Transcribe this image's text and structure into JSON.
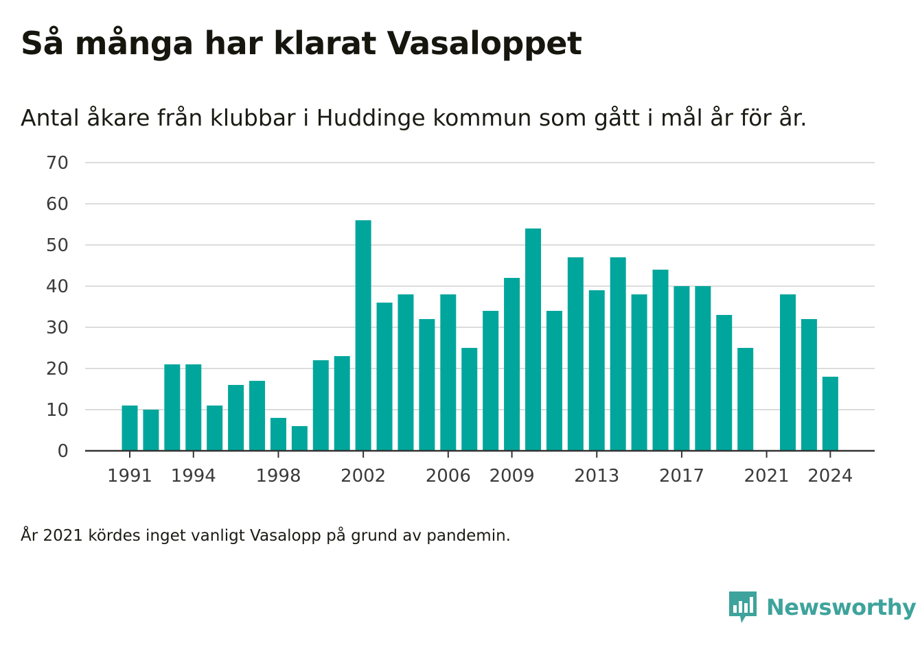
{
  "colors": {
    "bar": "#00a69c",
    "grid": "#dcdcdc",
    "axis": "#333333",
    "brand": "#3ea39c"
  },
  "brand": {
    "name": "Newsworthy",
    "icon": "newsworthy-logo-icon"
  },
  "footnote": "År 2021 kördes inget vanligt Vasalopp på grund av pandemin.",
  "chart_data": {
    "type": "bar",
    "title": "Så många har klarat Vasaloppet",
    "subtitle": "Antal åkare från klubbar i Huddinge kommun som gått i mål år för år.",
    "xlabel": "",
    "ylabel": "",
    "ylim": [
      0,
      70
    ],
    "yticks": [
      0,
      10,
      20,
      30,
      40,
      50,
      60,
      70
    ],
    "xticks": [
      "1991",
      "1994",
      "1998",
      "2002",
      "2006",
      "2009",
      "2013",
      "2017",
      "2021",
      "2024"
    ],
    "grid": true,
    "legend": "none",
    "categories": [
      "1991",
      "1992",
      "1993",
      "1994",
      "1995",
      "1996",
      "1997",
      "1998",
      "1999",
      "2000",
      "2001",
      "2002",
      "2003",
      "2004",
      "2005",
      "2006",
      "2007",
      "2008",
      "2009",
      "2010",
      "2011",
      "2012",
      "2013",
      "2014",
      "2015",
      "2016",
      "2017",
      "2018",
      "2019",
      "2020",
      "2021",
      "2022",
      "2023",
      "2024"
    ],
    "values": [
      11,
      10,
      21,
      21,
      11,
      16,
      17,
      8,
      6,
      22,
      23,
      56,
      36,
      38,
      32,
      38,
      25,
      34,
      42,
      54,
      34,
      47,
      39,
      47,
      38,
      44,
      40,
      40,
      33,
      25,
      0,
      38,
      32,
      18
    ]
  }
}
